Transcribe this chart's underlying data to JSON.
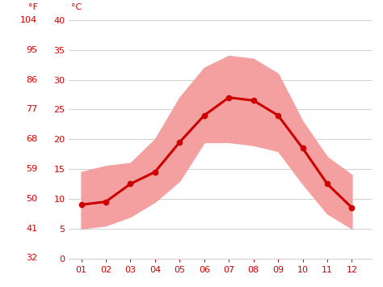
{
  "months": [
    1,
    2,
    3,
    4,
    5,
    6,
    7,
    8,
    9,
    10,
    11,
    12
  ],
  "month_labels": [
    "01",
    "02",
    "03",
    "04",
    "05",
    "06",
    "07",
    "08",
    "09",
    "10",
    "11",
    "12"
  ],
  "avg_temp_c": [
    9.0,
    9.5,
    12.5,
    14.5,
    19.5,
    24.0,
    27.0,
    26.5,
    24.0,
    18.5,
    12.5,
    8.5
  ],
  "max_temp_c": [
    14.5,
    15.5,
    16.0,
    20.0,
    27.0,
    32.0,
    34.0,
    33.5,
    31.0,
    23.0,
    17.0,
    14.0
  ],
  "min_temp_c": [
    5.0,
    5.5,
    7.0,
    9.5,
    13.0,
    19.5,
    19.5,
    19.0,
    18.0,
    12.5,
    7.5,
    5.0
  ],
  "ylim_c": [
    0,
    40
  ],
  "yticks_c": [
    0,
    5,
    10,
    15,
    20,
    25,
    30,
    35,
    40
  ],
  "yticks_f": [
    32,
    41,
    50,
    59,
    68,
    77,
    86,
    95,
    104
  ],
  "line_color": "#cc0000",
  "band_color": "#f4a0a0",
  "bg_color": "#ffffff",
  "grid_color": "#d0d0d0",
  "tick_label_color": "#cc0000",
  "line_width": 2.2,
  "marker_size": 4.5,
  "label_fontsize": 8,
  "axes_label_fontsize": 8
}
